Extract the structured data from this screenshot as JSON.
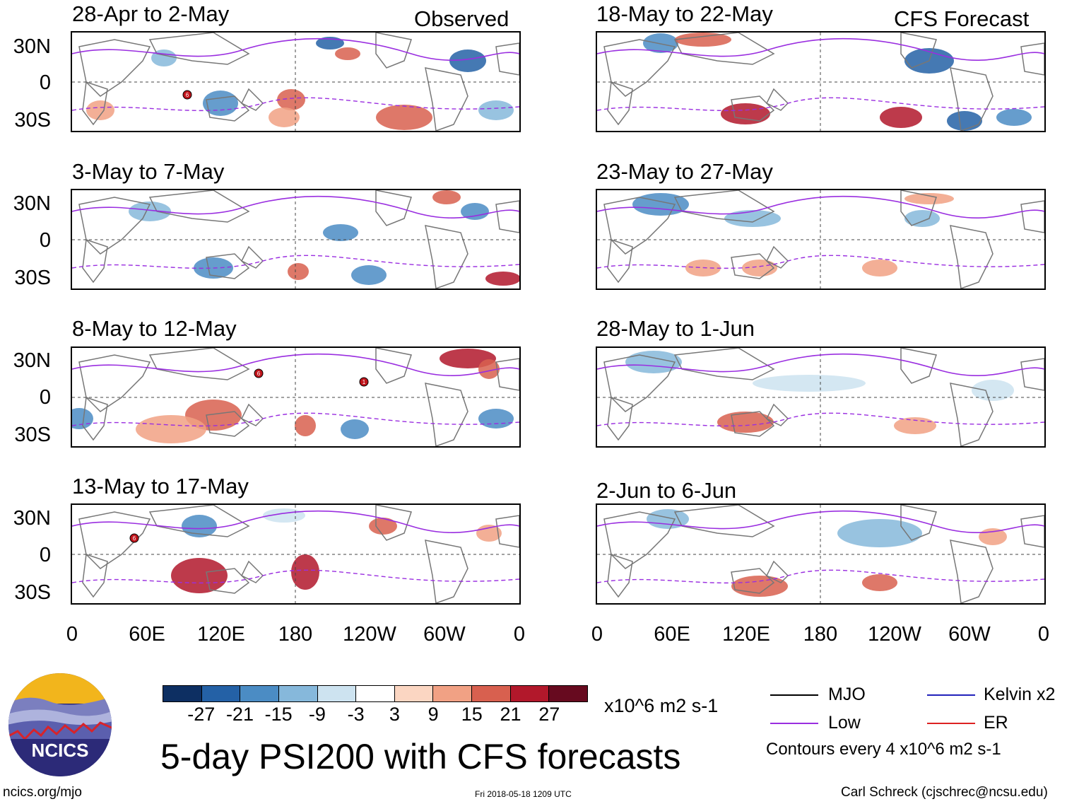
{
  "observed_label": "Observed",
  "forecast_label": "CFS Forecast",
  "observed_panels": [
    {
      "title": "28-Apr to 2-May"
    },
    {
      "title": "3-May to 7-May"
    },
    {
      "title": "8-May to 12-May"
    },
    {
      "title": "13-May to 17-May"
    }
  ],
  "forecast_panels": [
    {
      "title": "18-May to 22-May"
    },
    {
      "title": "23-May to 27-May"
    },
    {
      "title": "28-May to 1-Jun"
    },
    {
      "title": "2-Jun to 6-Jun"
    }
  ],
  "lat_labels": [
    "30N",
    "0",
    "30S"
  ],
  "lon_labels": [
    "0",
    "60E",
    "120E",
    "180",
    "120W",
    "60W",
    "0"
  ],
  "storm_markers": [
    {
      "panel": 0,
      "number": "6"
    },
    {
      "panel": 2,
      "number": "6"
    },
    {
      "panel": 2,
      "number": "1"
    },
    {
      "panel": 3,
      "number": "6"
    }
  ],
  "colorbar": {
    "colors": [
      "#0d2f62",
      "#2461a6",
      "#4b8cc4",
      "#86b8db",
      "#cde3f0",
      "#ffffff",
      "#fbd6c2",
      "#f1a184",
      "#d8604f",
      "#b2182b",
      "#670a1f"
    ],
    "labels": [
      "-27",
      "-21",
      "-15",
      "-9",
      "-3",
      "3",
      "9",
      "15",
      "21",
      "27"
    ],
    "units": "x10^6 m2 s-1"
  },
  "legend": {
    "items": [
      {
        "label": "MJO",
        "color": "#000000"
      },
      {
        "label": "Kelvin x2",
        "color": "#2222bb"
      },
      {
        "label": "Low",
        "color": "#9a2ee0"
      },
      {
        "label": "ER",
        "color": "#dd2222"
      }
    ],
    "contour_note": "Contours every 4 x10^6 m2 s-1"
  },
  "main_title": "5-day PSI200 with CFS forecasts",
  "logo_text": "NCICS",
  "footer": {
    "left": "ncics.org/mjo",
    "center": "Fri 2018-05-18 1209 UTC",
    "right": "Carl Schreck (cjschrec@ncsu.edu)"
  }
}
